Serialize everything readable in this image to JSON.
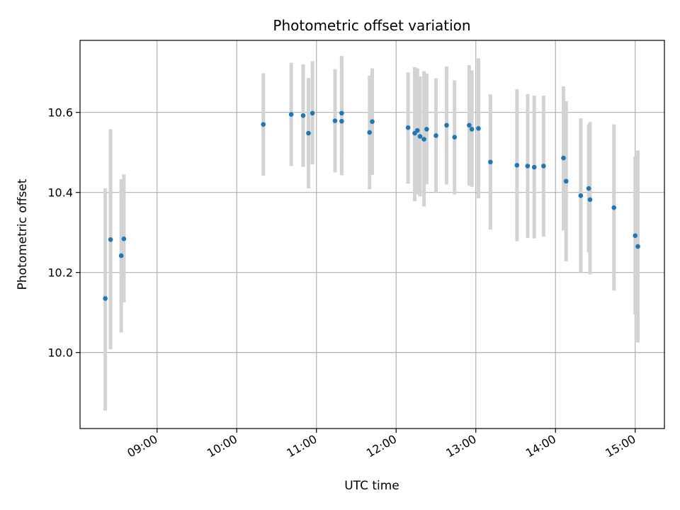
{
  "chart_data": {
    "type": "scatter",
    "title": "Photometric offset variation",
    "xlabel": "UTC time",
    "ylabel": "Photometric offset",
    "x_ticks": [
      "09:00",
      "10:00",
      "11:00",
      "12:00",
      "13:00",
      "14:00",
      "15:00"
    ],
    "y_ticks": [
      "10.0",
      "10.2",
      "10.4",
      "10.6"
    ],
    "xlim": [
      "08:02",
      "15:22"
    ],
    "ylim": [
      9.81,
      10.78
    ],
    "grid": true,
    "colors": {
      "point": "#1f77b4",
      "errorbar": "#d3d3d3",
      "grid": "#b0b0b0"
    },
    "points": [
      {
        "x": "08:21",
        "y": 10.135,
        "err_low": 9.855,
        "err_high": 10.41
      },
      {
        "x": "08:25",
        "y": 10.282,
        "err_low": 10.008,
        "err_high": 10.558
      },
      {
        "x": "08:33",
        "y": 10.242,
        "err_low": 10.05,
        "err_high": 10.433
      },
      {
        "x": "08:35",
        "y": 10.284,
        "err_low": 10.125,
        "err_high": 10.445
      },
      {
        "x": "10:20",
        "y": 10.57,
        "err_low": 10.442,
        "err_high": 10.698
      },
      {
        "x": "10:41",
        "y": 10.595,
        "err_low": 10.466,
        "err_high": 10.724
      },
      {
        "x": "10:50",
        "y": 10.592,
        "err_low": 10.464,
        "err_high": 10.72
      },
      {
        "x": "10:54",
        "y": 10.548,
        "err_low": 10.41,
        "err_high": 10.686
      },
      {
        "x": "10:57",
        "y": 10.598,
        "err_low": 10.47,
        "err_high": 10.728
      },
      {
        "x": "11:14",
        "y": 10.579,
        "err_low": 10.45,
        "err_high": 10.708
      },
      {
        "x": "11:19",
        "y": 10.598,
        "err_low": 10.49,
        "err_high": 10.712
      },
      {
        "x": "11:19",
        "y": 10.578,
        "err_low": 10.443,
        "err_high": 10.741
      },
      {
        "x": "11:40",
        "y": 10.55,
        "err_low": 10.408,
        "err_high": 10.692
      },
      {
        "x": "11:42",
        "y": 10.577,
        "err_low": 10.444,
        "err_high": 10.71
      },
      {
        "x": "12:09",
        "y": 10.562,
        "err_low": 10.422,
        "err_high": 10.7
      },
      {
        "x": "12:14",
        "y": 10.548,
        "err_low": 10.378,
        "err_high": 10.713
      },
      {
        "x": "12:16",
        "y": 10.555,
        "err_low": 10.395,
        "err_high": 10.71
      },
      {
        "x": "12:18",
        "y": 10.54,
        "err_low": 10.39,
        "err_high": 10.69
      },
      {
        "x": "12:21",
        "y": 10.533,
        "err_low": 10.365,
        "err_high": 10.703
      },
      {
        "x": "12:23",
        "y": 10.558,
        "err_low": 10.42,
        "err_high": 10.697
      },
      {
        "x": "12:30",
        "y": 10.542,
        "err_low": 10.4,
        "err_high": 10.685
      },
      {
        "x": "12:38",
        "y": 10.568,
        "err_low": 10.42,
        "err_high": 10.715
      },
      {
        "x": "12:44",
        "y": 10.538,
        "err_low": 10.395,
        "err_high": 10.68
      },
      {
        "x": "12:55",
        "y": 10.568,
        "err_low": 10.417,
        "err_high": 10.718
      },
      {
        "x": "12:57",
        "y": 10.558,
        "err_low": 10.414,
        "err_high": 10.705
      },
      {
        "x": "13:02",
        "y": 10.56,
        "err_low": 10.385,
        "err_high": 10.735
      },
      {
        "x": "13:11",
        "y": 10.476,
        "err_low": 10.307,
        "err_high": 10.645
      },
      {
        "x": "13:31",
        "y": 10.468,
        "err_low": 10.278,
        "err_high": 10.658
      },
      {
        "x": "13:39",
        "y": 10.466,
        "err_low": 10.286,
        "err_high": 10.646
      },
      {
        "x": "13:44",
        "y": 10.463,
        "err_low": 10.285,
        "err_high": 10.642
      },
      {
        "x": "13:51",
        "y": 10.466,
        "err_low": 10.29,
        "err_high": 10.642
      },
      {
        "x": "14:06",
        "y": 10.486,
        "err_low": 10.305,
        "err_high": 10.665
      },
      {
        "x": "14:08",
        "y": 10.428,
        "err_low": 10.228,
        "err_high": 10.628
      },
      {
        "x": "14:19",
        "y": 10.392,
        "err_low": 10.2,
        "err_high": 10.585
      },
      {
        "x": "14:25",
        "y": 10.41,
        "err_low": 10.25,
        "err_high": 10.57
      },
      {
        "x": "14:26",
        "y": 10.382,
        "err_low": 10.195,
        "err_high": 10.576
      },
      {
        "x": "14:44",
        "y": 10.362,
        "err_low": 10.155,
        "err_high": 10.57
      },
      {
        "x": "15:00",
        "y": 10.292,
        "err_low": 10.095,
        "err_high": 10.49
      },
      {
        "x": "15:02",
        "y": 10.265,
        "err_low": 10.025,
        "err_high": 10.505
      }
    ]
  }
}
